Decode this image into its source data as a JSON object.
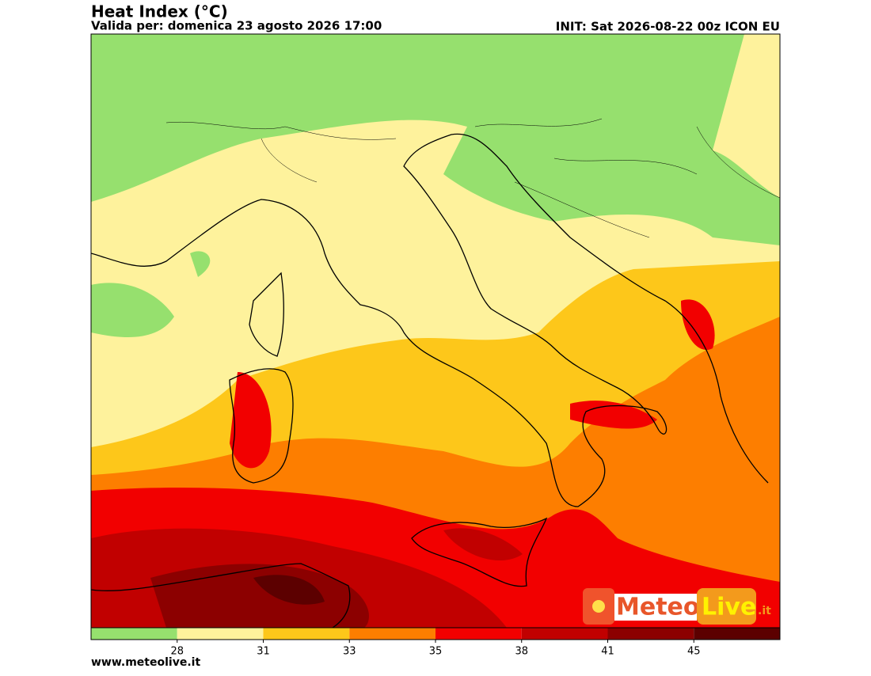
{
  "header": {
    "title": "Heat Index (°C)",
    "valid": "Valida per: domenica 23 agosto 2026 17:00",
    "init": "INIT: Sat 2026-08-22 00z ICON EU"
  },
  "colorbar": {
    "ticks": [
      28,
      31,
      33,
      35,
      38,
      41,
      45
    ],
    "colors": [
      "#96e06e",
      "#fef29c",
      "#fdc71a",
      "#fd7e00",
      "#f20000",
      "#c10000",
      "#8c0000",
      "#5c0000"
    ]
  },
  "logo": {
    "meteo": "Meteo",
    "live": "Live",
    "suffix": ".it"
  },
  "footer": {
    "url": "www.meteolive.it"
  }
}
